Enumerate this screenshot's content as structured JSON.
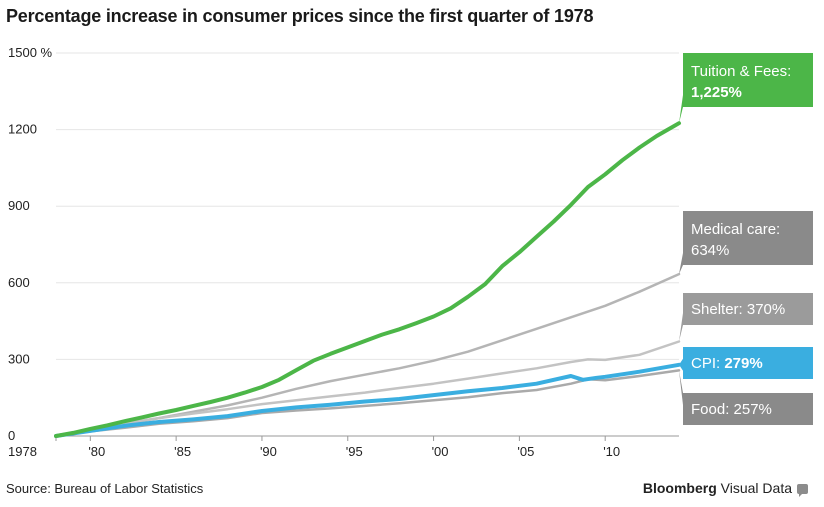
{
  "title": "Percentage increase in consumer prices since the first quarter of 1978",
  "source": "Source: Bureau of Labor Statistics",
  "brand": {
    "name": "Bloomberg",
    "suffix": "Visual Data",
    "icon": "speech-bubble-icon"
  },
  "chart_data": {
    "type": "line",
    "title": "Percentage increase in consumer prices since the first quarter of 1978",
    "xlabel": "",
    "ylabel": "",
    "xlim": [
      1978,
      2014.3
    ],
    "ylim": [
      0,
      1500
    ],
    "y_ticks": [
      0,
      300,
      600,
      900,
      1200,
      1500
    ],
    "y_tick_labels": [
      "0",
      "300",
      "600",
      "900",
      "1200",
      "1500 %"
    ],
    "x_ticks": [
      1978,
      1980,
      1985,
      1990,
      1995,
      2000,
      2005,
      2010
    ],
    "x_tick_labels": [
      "1978",
      "'80",
      "'85",
      "'90",
      "'95",
      "'00",
      "'05",
      "'10"
    ],
    "grid": true,
    "legend": "none",
    "series": [
      {
        "name": "Tuition & Fees",
        "color": "#4cb648",
        "label": "Tuition & Fees:",
        "value_label": "1,225%",
        "points": [
          [
            1978,
            0
          ],
          [
            1979,
            12
          ],
          [
            1980,
            28
          ],
          [
            1981,
            42
          ],
          [
            1982,
            58
          ],
          [
            1983,
            73
          ],
          [
            1984,
            88
          ],
          [
            1985,
            102
          ],
          [
            1986,
            118
          ],
          [
            1987,
            133
          ],
          [
            1988,
            150
          ],
          [
            1989,
            170
          ],
          [
            1990,
            192
          ],
          [
            1991,
            220
          ],
          [
            1992,
            258
          ],
          [
            1993,
            295
          ],
          [
            1994,
            322
          ],
          [
            1995,
            347
          ],
          [
            1996,
            372
          ],
          [
            1997,
            397
          ],
          [
            1998,
            418
          ],
          [
            1999,
            442
          ],
          [
            2000,
            468
          ],
          [
            2001,
            500
          ],
          [
            2002,
            545
          ],
          [
            2003,
            595
          ],
          [
            2004,
            665
          ],
          [
            2005,
            720
          ],
          [
            2006,
            780
          ],
          [
            2007,
            840
          ],
          [
            2008,
            905
          ],
          [
            2009,
            975
          ],
          [
            2010,
            1025
          ],
          [
            2011,
            1080
          ],
          [
            2012,
            1130
          ],
          [
            2013,
            1175
          ],
          [
            2014.3,
            1225
          ]
        ]
      },
      {
        "name": "Medical care",
        "color": "#b5b5b5",
        "label": "Medical care:",
        "value_label": "634%",
        "points": [
          [
            1978,
            0
          ],
          [
            1980,
            22
          ],
          [
            1982,
            48
          ],
          [
            1984,
            70
          ],
          [
            1986,
            95
          ],
          [
            1988,
            120
          ],
          [
            1990,
            150
          ],
          [
            1992,
            185
          ],
          [
            1994,
            215
          ],
          [
            1996,
            240
          ],
          [
            1998,
            265
          ],
          [
            2000,
            295
          ],
          [
            2002,
            330
          ],
          [
            2004,
            375
          ],
          [
            2006,
            420
          ],
          [
            2008,
            465
          ],
          [
            2010,
            510
          ],
          [
            2012,
            565
          ],
          [
            2014.3,
            634
          ]
        ]
      },
      {
        "name": "Shelter",
        "color": "#c3c3c3",
        "label": "Shelter:",
        "value_label": "370%",
        "points": [
          [
            1978,
            0
          ],
          [
            1980,
            25
          ],
          [
            1982,
            50
          ],
          [
            1984,
            70
          ],
          [
            1986,
            88
          ],
          [
            1988,
            105
          ],
          [
            1990,
            125
          ],
          [
            1992,
            140
          ],
          [
            1994,
            155
          ],
          [
            1996,
            170
          ],
          [
            1998,
            188
          ],
          [
            2000,
            205
          ],
          [
            2002,
            225
          ],
          [
            2004,
            245
          ],
          [
            2006,
            265
          ],
          [
            2008,
            290
          ],
          [
            2009,
            300
          ],
          [
            2010,
            298
          ],
          [
            2012,
            318
          ],
          [
            2014.3,
            370
          ]
        ]
      },
      {
        "name": "CPI",
        "color": "#3aaee0",
        "label": "CPI:",
        "value_label": "279%",
        "points": [
          [
            1978,
            0
          ],
          [
            1980,
            20
          ],
          [
            1982,
            40
          ],
          [
            1984,
            55
          ],
          [
            1986,
            65
          ],
          [
            1988,
            78
          ],
          [
            1990,
            98
          ],
          [
            1992,
            112
          ],
          [
            1994,
            122
          ],
          [
            1996,
            135
          ],
          [
            1998,
            145
          ],
          [
            2000,
            160
          ],
          [
            2002,
            175
          ],
          [
            2004,
            188
          ],
          [
            2006,
            205
          ],
          [
            2008,
            235
          ],
          [
            2008.7,
            220
          ],
          [
            2009.5,
            228
          ],
          [
            2010,
            232
          ],
          [
            2012,
            252
          ],
          [
            2014.3,
            279
          ]
        ]
      },
      {
        "name": "Food",
        "color": "#aaaaaa",
        "label": "Food:",
        "value_label": "257%",
        "points": [
          [
            1978,
            0
          ],
          [
            1980,
            18
          ],
          [
            1982,
            32
          ],
          [
            1984,
            48
          ],
          [
            1986,
            58
          ],
          [
            1988,
            70
          ],
          [
            1990,
            90
          ],
          [
            1992,
            100
          ],
          [
            1994,
            108
          ],
          [
            1996,
            118
          ],
          [
            1998,
            128
          ],
          [
            2000,
            140
          ],
          [
            2002,
            152
          ],
          [
            2004,
            168
          ],
          [
            2006,
            180
          ],
          [
            2008,
            205
          ],
          [
            2009,
            222
          ],
          [
            2010,
            218
          ],
          [
            2012,
            235
          ],
          [
            2014.3,
            257
          ]
        ]
      }
    ]
  }
}
